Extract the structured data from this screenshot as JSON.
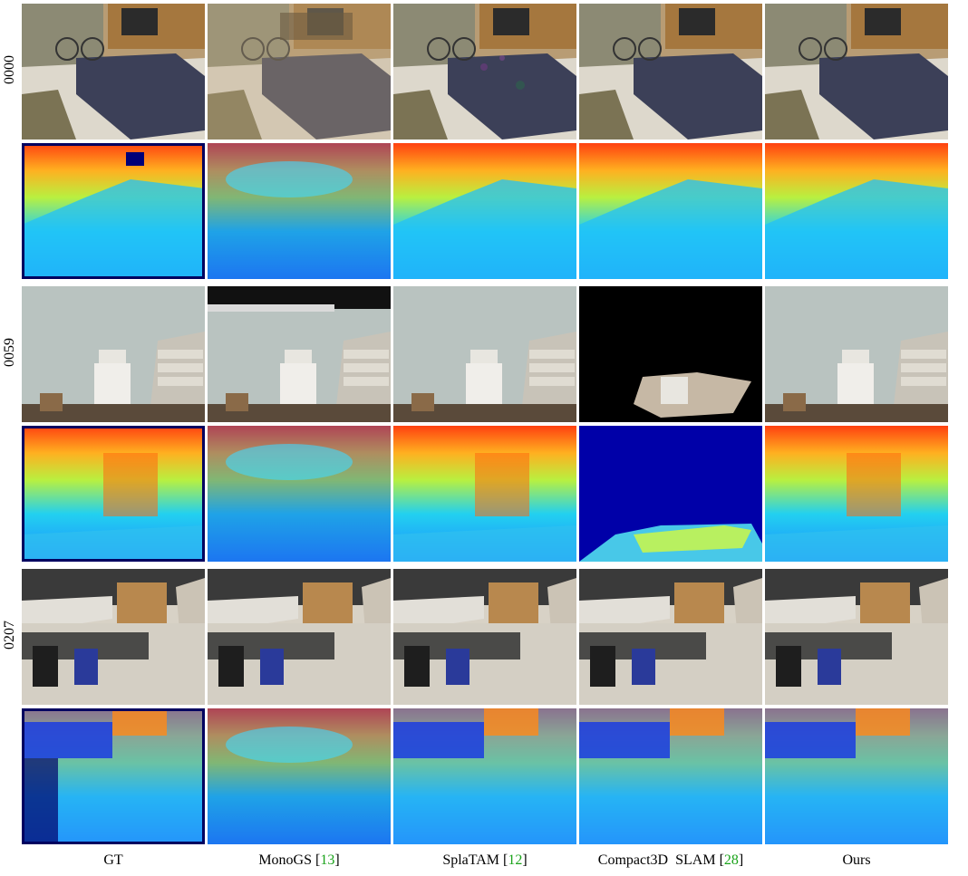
{
  "columns": [
    {
      "method": "GT",
      "cite": ""
    },
    {
      "method": "MonoGS",
      "cite": "13"
    },
    {
      "method": "SplaTAM",
      "cite": "12"
    },
    {
      "method": "Compact3D  SLAM",
      "cite": "28"
    },
    {
      "method": "Ours",
      "cite": ""
    }
  ],
  "scenes": [
    "0000",
    "0059",
    "0207"
  ],
  "row_types": [
    "rgb",
    "depth"
  ],
  "colors": {
    "citation": "#1aa31a",
    "depth_near": "#00008b",
    "depth_far": "#ff2000"
  }
}
